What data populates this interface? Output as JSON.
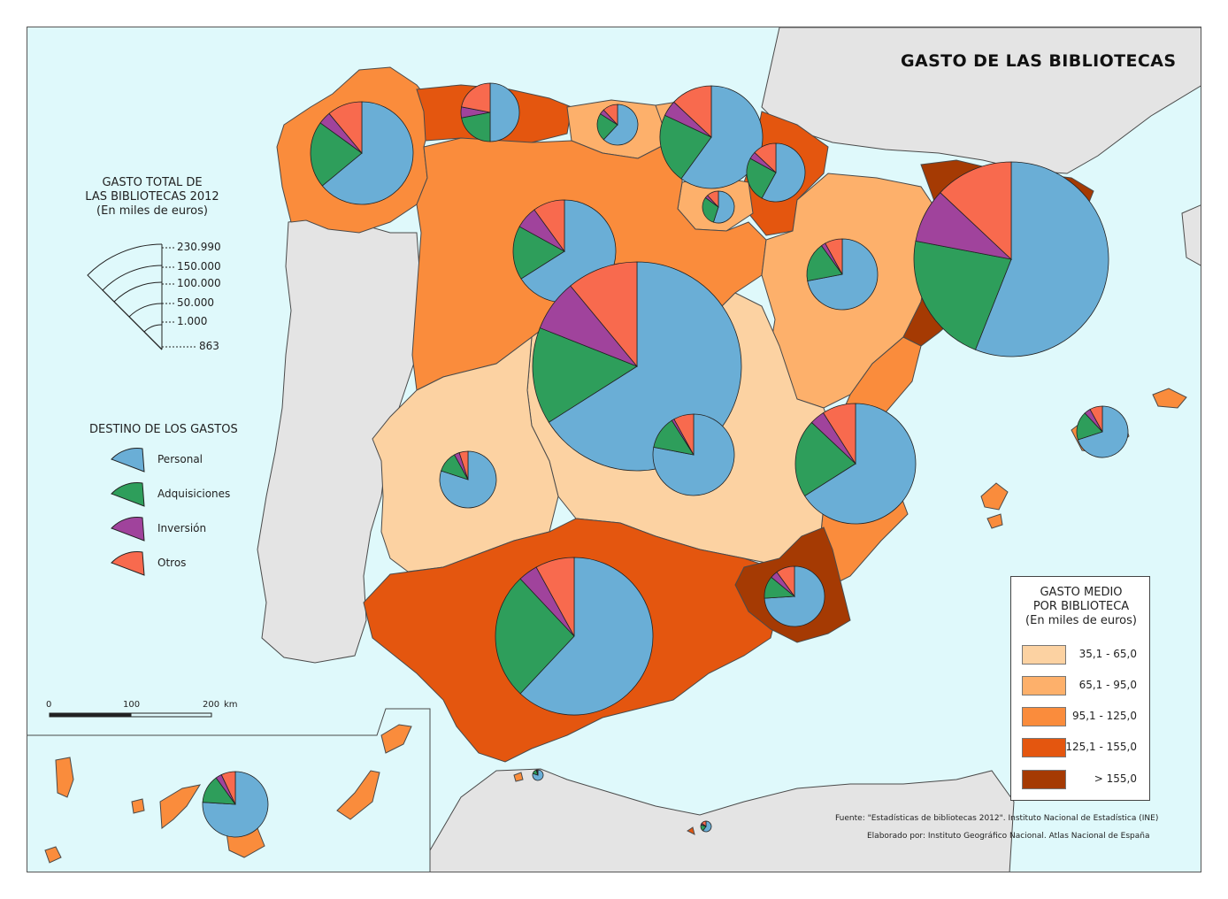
{
  "title": "GASTO DE LAS BIBLIOTECAS",
  "total_legend": {
    "title_lines": [
      "GASTO TOTAL DE",
      "LAS BIBLIOTECAS 2012",
      "(En miles de euros)"
    ],
    "sizes": [
      "230.990",
      "150.000",
      "100.000",
      "50.000",
      "1.000",
      "863"
    ]
  },
  "destination_legend": {
    "title": "DESTINO DE LOS GASTOS",
    "items": [
      {
        "label": "Personal",
        "color": "#6aaed6"
      },
      {
        "label": "Adquisiciones",
        "color": "#2e9e5b"
      },
      {
        "label": "Inversión",
        "color": "#a0439c"
      },
      {
        "label": "Otros",
        "color": "#f86a4e"
      }
    ]
  },
  "average_legend": {
    "title_lines": [
      "GASTO MEDIO",
      "POR BIBLIOTECA",
      "(En miles de euros)"
    ],
    "classes": [
      {
        "label": "35,1 - 65,0",
        "color": "#fcd2a2"
      },
      {
        "label": "65,1 - 95,0",
        "color": "#fdb06b"
      },
      {
        "label": "95,1 - 125,0",
        "color": "#fa8c3c"
      },
      {
        "label": "125,1 - 155,0",
        "color": "#e4560f"
      },
      {
        "label": "> 155,0",
        "color": "#a53a03"
      }
    ]
  },
  "scale": {
    "ticks": [
      "0",
      "100",
      "200"
    ],
    "unit": "km"
  },
  "source": "Fuente: \"Estadísticas de bibliotecas 2012\". Instituto Nacional de Estadística (INE)",
  "credits": "Elaborado por: Instituto Geográfico Nacional. Atlas Nacional de España",
  "colors": {
    "sea": "#dff9fb",
    "foreign_land": "#e4e4e4",
    "border": "#4a4a4a"
  }
}
